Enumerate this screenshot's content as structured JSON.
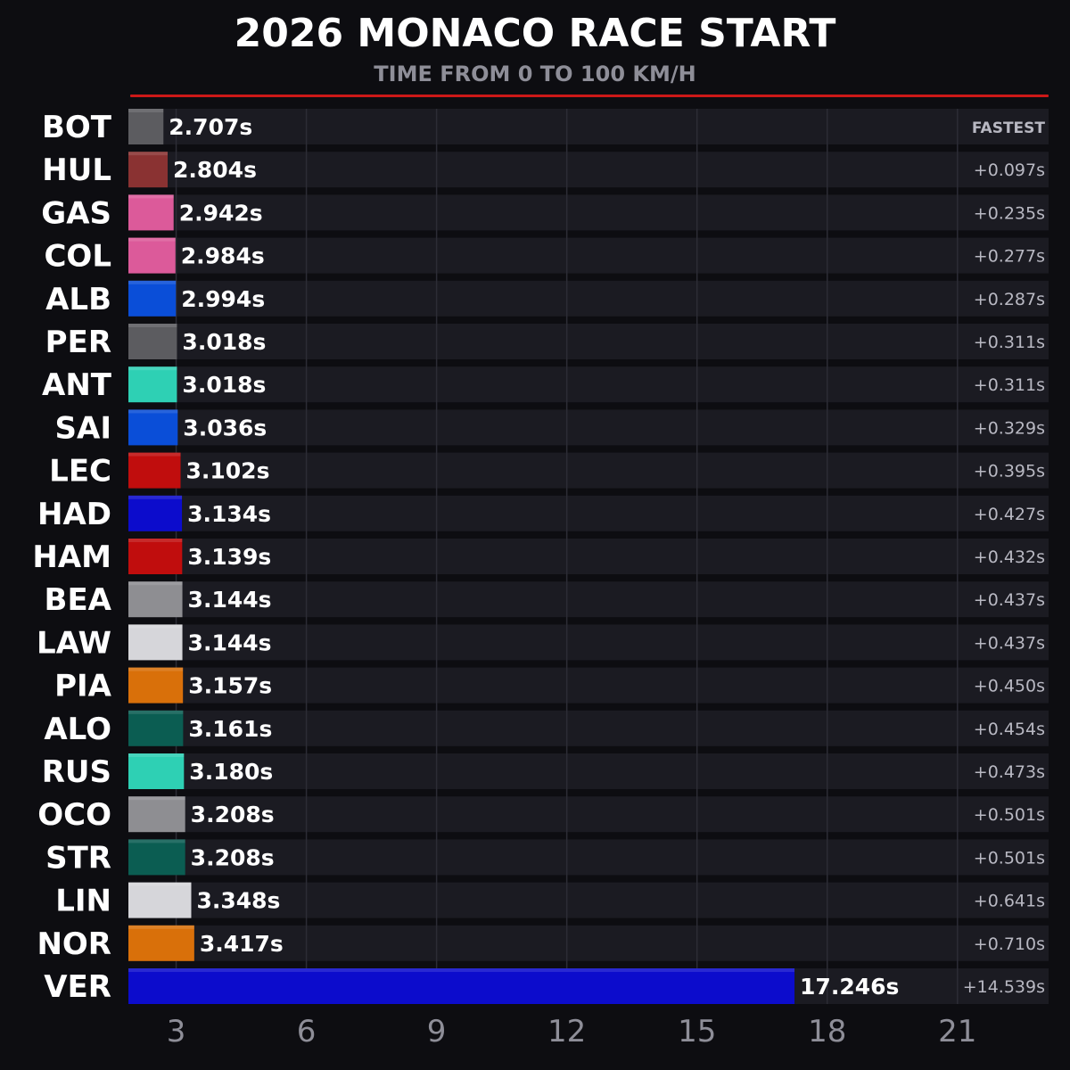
{
  "header": {
    "title": "2026 MONACO RACE START",
    "subtitle": "TIME FROM 0 TO 100 KM/H"
  },
  "chart_data": {
    "type": "bar",
    "orientation": "horizontal",
    "title": "2026 MONACO RACE START",
    "subtitle": "TIME FROM 0 TO 100 KM/H",
    "xlabel": "",
    "ylabel": "",
    "xlim": [
      1.9,
      23.1
    ],
    "x_ticks": [
      3,
      6,
      9,
      12,
      15,
      18,
      21
    ],
    "grid": true,
    "legend": "none",
    "categories": [
      "BOT",
      "HUL",
      "GAS",
      "COL",
      "ALB",
      "PER",
      "ANT",
      "SAI",
      "LEC",
      "HAD",
      "HAM",
      "BEA",
      "LAW",
      "PIA",
      "ALO",
      "RUS",
      "OCO",
      "STR",
      "LIN",
      "NOR",
      "VER"
    ],
    "values": [
      2.707,
      2.804,
      2.942,
      2.984,
      2.994,
      3.018,
      3.018,
      3.036,
      3.102,
      3.134,
      3.139,
      3.144,
      3.144,
      3.157,
      3.161,
      3.18,
      3.208,
      3.208,
      3.348,
      3.417,
      17.246
    ],
    "value_labels": [
      "2.707s",
      "2.804s",
      "2.942s",
      "2.984s",
      "2.994s",
      "3.018s",
      "3.018s",
      "3.036s",
      "3.102s",
      "3.134s",
      "3.139s",
      "3.144s",
      "3.144s",
      "3.157s",
      "3.161s",
      "3.180s",
      "3.208s",
      "3.208s",
      "3.348s",
      "3.417s",
      "17.246s"
    ],
    "gap_labels": [
      "FASTEST",
      "+0.097s",
      "+0.235s",
      "+0.277s",
      "+0.287s",
      "+0.311s",
      "+0.311s",
      "+0.329s",
      "+0.395s",
      "+0.427s",
      "+0.432s",
      "+0.437s",
      "+0.437s",
      "+0.450s",
      "+0.454s",
      "+0.473s",
      "+0.501s",
      "+0.501s",
      "+0.641s",
      "+0.710s",
      "+14.539s"
    ],
    "colors": [
      "#5c5c60",
      "#8a3232",
      "#dc5a9a",
      "#dc5a9a",
      "#0a4ed8",
      "#5c5c60",
      "#2ed0b4",
      "#0a4ed8",
      "#c00d0d",
      "#0c0ccc",
      "#c00d0d",
      "#8e8e92",
      "#d6d6da",
      "#d9700a",
      "#0b5d52",
      "#2ed0b4",
      "#8e8e92",
      "#0b5d52",
      "#d6d6da",
      "#d9700a",
      "#0c0ccc"
    ]
  }
}
